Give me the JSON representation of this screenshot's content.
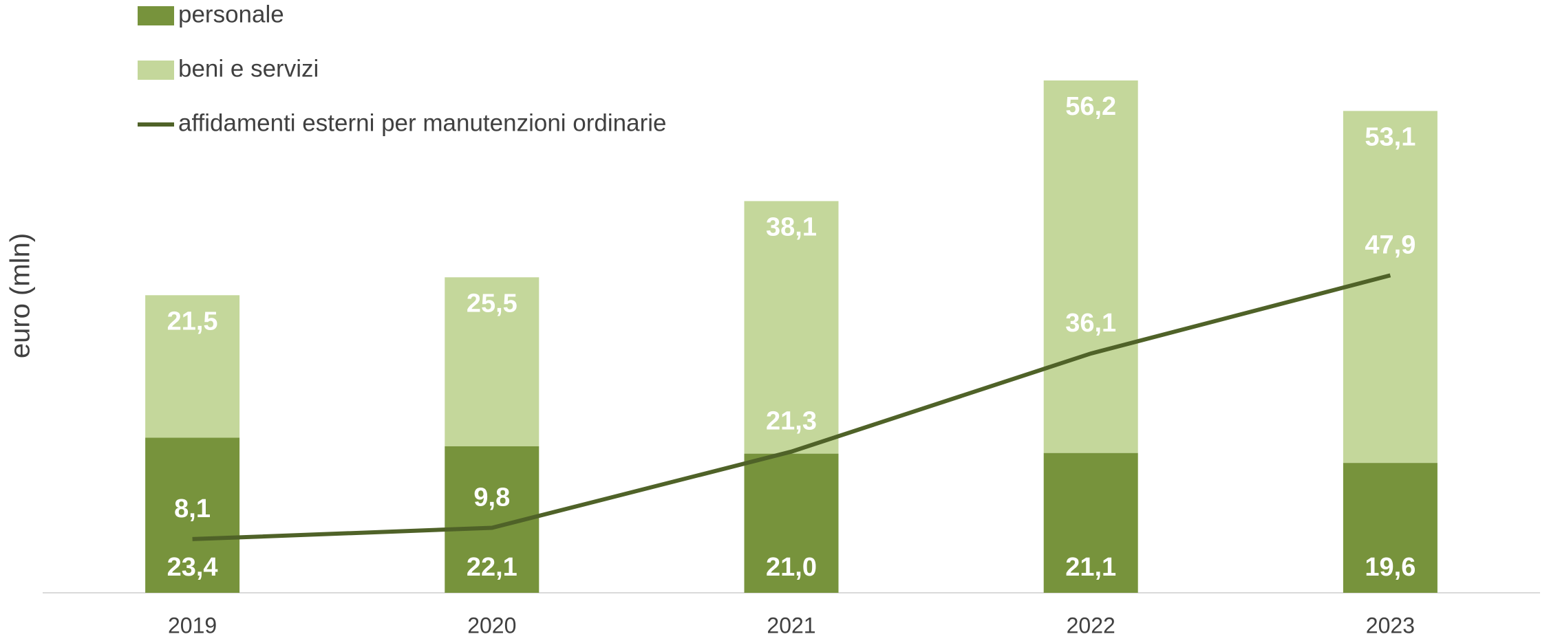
{
  "chart_data": {
    "type": "stacked_bar_line",
    "y_axis_label": "euro  (mln)",
    "categories": [
      "2019",
      "2020",
      "2021",
      "2022",
      "2023"
    ],
    "series": [
      {
        "name": "personale",
        "color": "#77933c",
        "kind": "bar",
        "values": [
          23.4,
          22.1,
          21.0,
          21.1,
          19.6
        ],
        "value_labels": [
          "23,4",
          "22,1",
          "21,0",
          "21,1",
          "19,6"
        ]
      },
      {
        "name": "beni e servizi",
        "color": "#c4d79b",
        "kind": "bar",
        "values": [
          21.5,
          25.5,
          38.1,
          56.2,
          53.1
        ],
        "value_labels": [
          "21,5",
          "25,5",
          "38,1",
          "56,2",
          "53,1"
        ]
      },
      {
        "name": "affidamenti esterni per manutenzioni ordinarie",
        "color": "#4f6228",
        "kind": "line",
        "values": [
          8.1,
          9.8,
          21.3,
          36.1,
          47.9
        ],
        "value_labels": [
          "8,1",
          "9,8",
          "21,3",
          "36,1",
          "47,9"
        ]
      }
    ],
    "legend": "top-left"
  }
}
